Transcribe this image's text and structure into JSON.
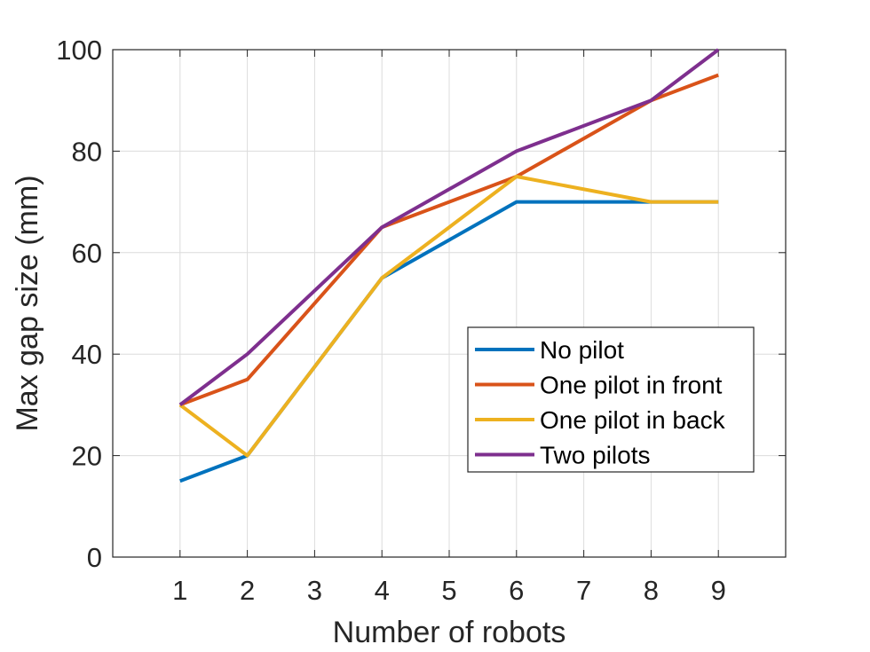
{
  "chart_data": {
    "type": "line",
    "title": "",
    "xlabel": "Number of robots",
    "ylabel": "Max gap size (mm)",
    "x": [
      1,
      2,
      4,
      6,
      8,
      9
    ],
    "xticks": [
      1,
      2,
      3,
      4,
      5,
      6,
      7,
      8,
      9
    ],
    "yticks": [
      0,
      20,
      40,
      60,
      80,
      100
    ],
    "xlim": [
      0,
      10
    ],
    "ylim": [
      0,
      100
    ],
    "grid": true,
    "legend_position": "right-middle",
    "series": [
      {
        "name": "No pilot",
        "color": "#0072BD",
        "values": [
          15,
          20,
          55,
          70,
          70,
          70
        ]
      },
      {
        "name": "One pilot in front",
        "color": "#D95319",
        "values": [
          30,
          35,
          65,
          75,
          90,
          95
        ]
      },
      {
        "name": "One pilot in back",
        "color": "#EDB120",
        "values": [
          30,
          20,
          55,
          75,
          70,
          70
        ]
      },
      {
        "name": "Two pilots",
        "color": "#7E2F8E",
        "values": [
          30,
          40,
          65,
          80,
          90,
          100
        ]
      }
    ]
  }
}
